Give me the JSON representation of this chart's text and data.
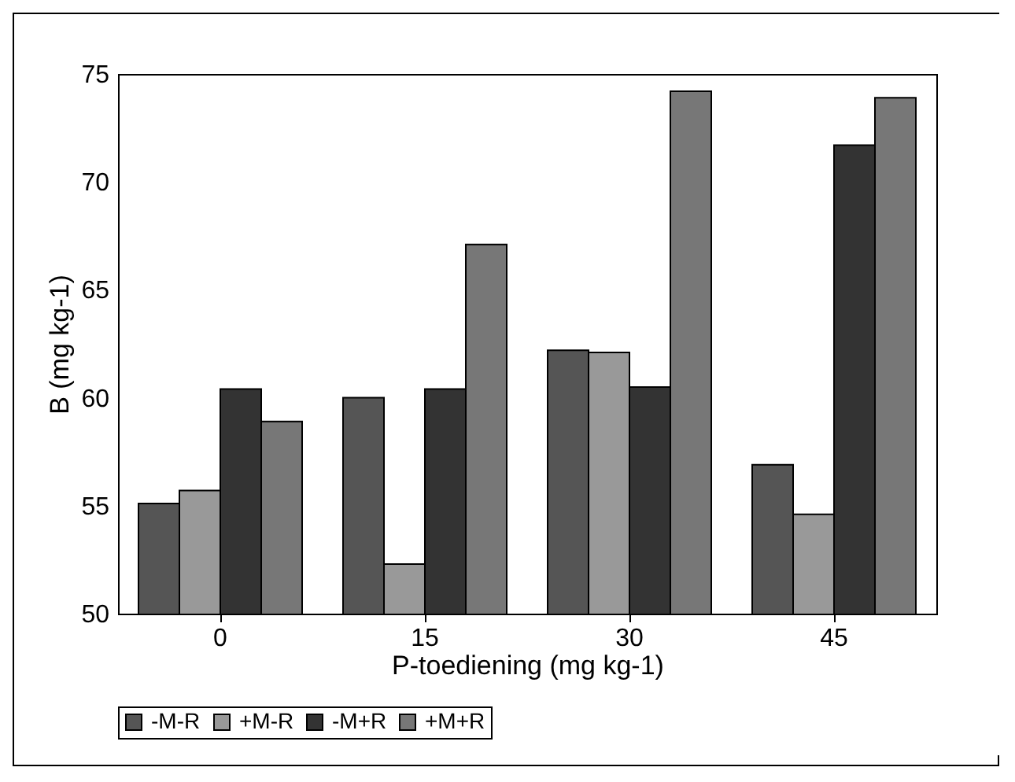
{
  "chart_data": {
    "type": "bar",
    "xlabel": "P-toediening (mg kg-1)",
    "ylabel": "B (mg kg-1)",
    "categories": [
      "0",
      "15",
      "30",
      "45"
    ],
    "series": [
      {
        "name": "-M-R",
        "color": "#555555",
        "values": [
          55.1,
          60.0,
          62.2,
          56.9
        ]
      },
      {
        "name": "+M-R",
        "color": "#999999",
        "values": [
          55.7,
          52.3,
          62.1,
          54.6
        ]
      },
      {
        "name": "-M+R",
        "color": "#333333",
        "values": [
          60.4,
          60.4,
          60.5,
          71.7
        ]
      },
      {
        "name": "+M+R",
        "color": "#777777",
        "values": [
          58.9,
          67.1,
          74.2,
          73.9
        ]
      }
    ],
    "ylim": [
      50,
      75
    ],
    "yticks": [
      50,
      55,
      60,
      65,
      70,
      75
    ],
    "grid": false,
    "legend": "bottom"
  }
}
